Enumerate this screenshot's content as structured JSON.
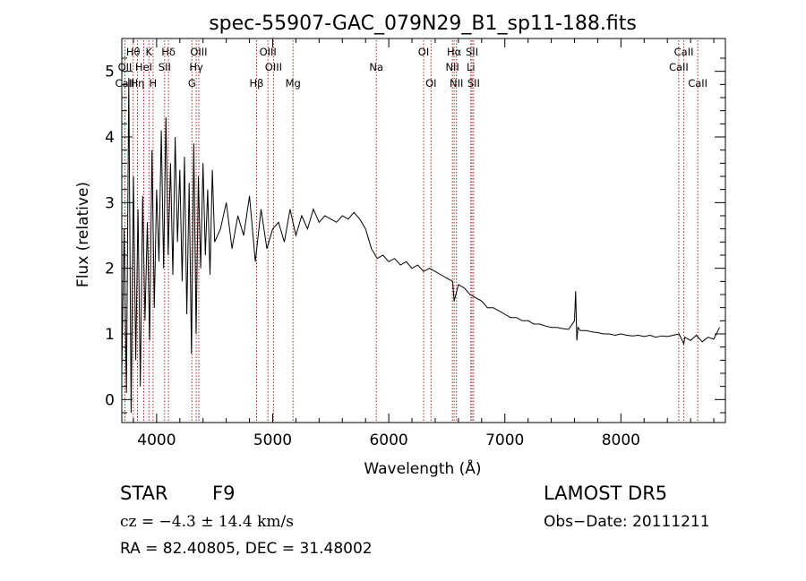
{
  "chart_data": {
    "type": "line",
    "title": "spec-55907-GAC_079N29_B1_sp11-188.fits",
    "xlabel": "Wavelength (Å)",
    "ylabel": "Flux (relative)",
    "xlim": [
      3700,
      8900
    ],
    "ylim": [
      -0.35,
      5.5
    ],
    "xticks": [
      4000,
      5000,
      6000,
      7000,
      8000
    ],
    "yticks": [
      0,
      1,
      2,
      3,
      4,
      5
    ],
    "grid": false,
    "line_color": "#000000",
    "marker_color": "#b22222",
    "series": [
      {
        "values_description_free": true,
        "x": [
          3700,
          3720,
          3740,
          3760,
          3780,
          3800,
          3820,
          3840,
          3860,
          3880,
          3900,
          3920,
          3940,
          3960,
          3980,
          4000,
          4020,
          4040,
          4060,
          4080,
          4100,
          4120,
          4140,
          4160,
          4180,
          4200,
          4220,
          4240,
          4260,
          4280,
          4300,
          4320,
          4340,
          4360,
          4380,
          4400,
          4420,
          4440,
          4460,
          4480,
          4500,
          4550,
          4600,
          4650,
          4700,
          4750,
          4800,
          4850,
          4900,
          4950,
          5000,
          5050,
          5100,
          5150,
          5200,
          5250,
          5300,
          5350,
          5400,
          5450,
          5500,
          5550,
          5600,
          5650,
          5700,
          5750,
          5800,
          5850,
          5900,
          5950,
          6000,
          6050,
          6100,
          6150,
          6200,
          6250,
          6300,
          6350,
          6400,
          6450,
          6500,
          6550,
          6563,
          6600,
          6650,
          6700,
          6750,
          6800,
          6850,
          6900,
          6950,
          7000,
          7050,
          7100,
          7150,
          7200,
          7250,
          7300,
          7350,
          7400,
          7450,
          7500,
          7550,
          7600,
          7610,
          7620,
          7630,
          7650,
          7700,
          7750,
          7800,
          7850,
          7900,
          7950,
          8000,
          8050,
          8100,
          8150,
          8200,
          8250,
          8300,
          8350,
          8400,
          8450,
          8500,
          8542,
          8550,
          8600,
          8650,
          8700,
          8750,
          8800,
          8850
        ],
        "y": [
          0.4,
          2.6,
          0.1,
          4.9,
          -0.2,
          3.4,
          0.6,
          2.9,
          0.2,
          3.1,
          1.2,
          2.7,
          0.9,
          3.8,
          1.4,
          3.2,
          2.1,
          4.1,
          2.0,
          4.3,
          2.2,
          3.6,
          1.9,
          4.0,
          2.4,
          3.5,
          1.8,
          3.7,
          1.3,
          3.3,
          0.7,
          3.9,
          1.0,
          3.4,
          2.0,
          3.6,
          2.2,
          3.2,
          1.9,
          3.5,
          2.4,
          2.6,
          3.0,
          2.3,
          2.8,
          2.5,
          3.1,
          2.1,
          2.9,
          2.3,
          2.6,
          2.7,
          2.4,
          2.9,
          2.5,
          2.8,
          2.6,
          2.9,
          2.7,
          2.8,
          2.75,
          2.7,
          2.8,
          2.75,
          2.85,
          2.75,
          2.6,
          2.3,
          2.15,
          2.2,
          2.1,
          2.15,
          2.05,
          2.1,
          2.0,
          2.05,
          1.95,
          2.0,
          1.95,
          1.9,
          1.85,
          1.8,
          1.5,
          1.75,
          1.7,
          1.6,
          1.55,
          1.5,
          1.4,
          1.4,
          1.35,
          1.3,
          1.25,
          1.25,
          1.2,
          1.2,
          1.15,
          1.15,
          1.12,
          1.1,
          1.1,
          1.08,
          1.07,
          1.2,
          1.65,
          0.9,
          1.1,
          1.05,
          1.05,
          1.03,
          1.02,
          1.0,
          1.0,
          0.98,
          1.0,
          0.98,
          0.97,
          0.98,
          0.96,
          0.98,
          0.95,
          0.97,
          0.96,
          0.98,
          1.0,
          0.85,
          0.95,
          0.9,
          0.98,
          0.88,
          0.95,
          0.92,
          1.1
        ]
      }
    ],
    "line_markers": [
      {
        "label": "Hθ",
        "x": 3798,
        "row": 1
      },
      {
        "label": "OII",
        "x": 3727,
        "row": 2
      },
      {
        "label": "CaII",
        "x": 3727,
        "row": 3
      },
      {
        "label": "Hη",
        "x": 3835,
        "row": 3
      },
      {
        "label": "K",
        "x": 3934,
        "row": 1
      },
      {
        "label": "HeI",
        "x": 3889,
        "row": 2
      },
      {
        "label": "H",
        "x": 3969,
        "row": 3
      },
      {
        "label": "Hδ",
        "x": 4102,
        "row": 1
      },
      {
        "label": "SII",
        "x": 4069,
        "row": 2
      },
      {
        "label": "OIII",
        "x": 4363,
        "row": 1
      },
      {
        "label": "Hγ",
        "x": 4341,
        "row": 2
      },
      {
        "label": "G",
        "x": 4304,
        "row": 3
      },
      {
        "label": "OIII",
        "x": 4959,
        "row": 1
      },
      {
        "label": "OIII",
        "x": 5007,
        "row": 2
      },
      {
        "label": "Hβ",
        "x": 4861,
        "row": 3
      },
      {
        "label": "Mg",
        "x": 5175,
        "row": 3
      },
      {
        "label": "Na",
        "x": 5893,
        "row": 2
      },
      {
        "label": "OI",
        "x": 6300,
        "row": 1
      },
      {
        "label": "OI",
        "x": 6364,
        "row": 3
      },
      {
        "label": "Hα",
        "x": 6563,
        "row": 1
      },
      {
        "label": "NII",
        "x": 6548,
        "row": 2
      },
      {
        "label": "NII",
        "x": 6583,
        "row": 3
      },
      {
        "label": "SII",
        "x": 6717,
        "row": 1
      },
      {
        "label": "Li",
        "x": 6707,
        "row": 2
      },
      {
        "label": "SII",
        "x": 6731,
        "row": 3
      },
      {
        "label": "CaII",
        "x": 8542,
        "row": 1
      },
      {
        "label": "CaII",
        "x": 8498,
        "row": 2
      },
      {
        "label": "CaII",
        "x": 8662,
        "row": 3
      }
    ]
  },
  "info": {
    "object_class": "STAR",
    "subclass": "F9",
    "survey": "LAMOST DR5",
    "redshift_line": "cz = −4.3 ± 14.4 km/s",
    "obs_date_line": "Obs−Date: 20111211",
    "coords_line": "RA =  82.40805, DEC =  31.48002"
  }
}
